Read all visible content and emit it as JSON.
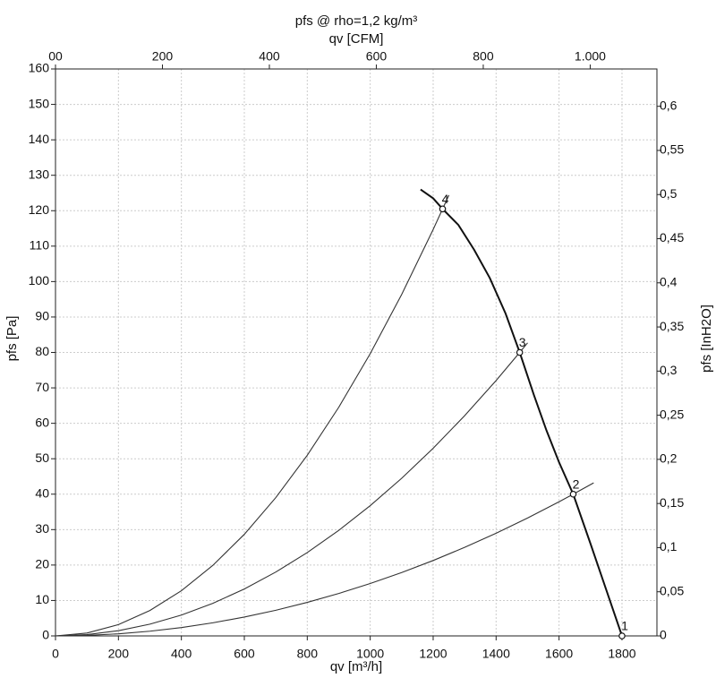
{
  "chart_data": {
    "type": "line",
    "title": "pfs @ rho=1,2 kg/m³",
    "x2_label": "qv [CFM]",
    "x_label": "qv [m³/h]",
    "y_label": "pfs [Pa]",
    "y2_label": "pfs [InH2O]",
    "xlim": [
      0,
      1911
    ],
    "xticks": [
      0,
      200,
      400,
      600,
      800,
      1000,
      1200,
      1400,
      1600,
      1800
    ],
    "x2lim": [
      0,
      1124.8
    ],
    "x2ticks": [
      {
        "value": 0,
        "label": "00"
      },
      200,
      400,
      600,
      800,
      {
        "value": 1000,
        "label": "1.000"
      }
    ],
    "ylim": [
      0,
      160
    ],
    "yticks": [
      0,
      10,
      20,
      30,
      40,
      50,
      60,
      70,
      80,
      90,
      100,
      110,
      120,
      130,
      140,
      150,
      160
    ],
    "y2lim": [
      0,
      0.6423
    ],
    "y2ticks": [
      0,
      {
        "value": 0.05,
        "label": "0,05"
      },
      {
        "value": 0.1,
        "label": "0,1"
      },
      {
        "value": 0.15,
        "label": "0,15"
      },
      {
        "value": 0.2,
        "label": "0,2"
      },
      {
        "value": 0.25,
        "label": "0,25"
      },
      {
        "value": 0.3,
        "label": "0,3"
      },
      {
        "value": 0.35,
        "label": "0,35"
      },
      {
        "value": 0.4,
        "label": "0,4"
      },
      {
        "value": 0.45,
        "label": "0,45"
      },
      {
        "value": 0.5,
        "label": "0,5"
      },
      {
        "value": 0.55,
        "label": "0,55"
      },
      {
        "value": 0.6,
        "label": "0,6"
      }
    ],
    "grid": true,
    "series": [
      {
        "color": "#111111",
        "x": [
          1160,
          1200,
          1230,
          1280,
          1330,
          1380,
          1430,
          1475,
          1520,
          1560,
          1600,
          1645,
          1700,
          1750,
          1800
        ],
        "values": [
          126,
          123.5,
          120.5,
          116,
          109,
          101,
          91,
          80,
          68,
          58,
          49,
          40,
          26,
          13,
          0
        ]
      },
      {
        "color": "#333333",
        "x": [
          0,
          100,
          200,
          300,
          400,
          500,
          600,
          700,
          800,
          900,
          1000,
          1100,
          1200,
          1230,
          1250
        ],
        "values": [
          0,
          0.8,
          3.19,
          7.17,
          12.74,
          19.91,
          28.67,
          39.03,
          50.98,
          64.52,
          79.65,
          96.38,
          114.7,
          120.5,
          124.4
        ]
      },
      {
        "color": "#333333",
        "x": [
          0,
          100,
          200,
          300,
          400,
          500,
          600,
          700,
          800,
          900,
          1000,
          1100,
          1200,
          1300,
          1400,
          1475,
          1500
        ],
        "values": [
          0,
          0.37,
          1.47,
          3.31,
          5.88,
          9.19,
          13.24,
          18.02,
          23.53,
          29.78,
          36.77,
          44.49,
          52.95,
          62.14,
          72.07,
          80,
          82.7
        ]
      },
      {
        "color": "#333333",
        "x": [
          0,
          100,
          200,
          300,
          400,
          500,
          600,
          700,
          800,
          900,
          1000,
          1100,
          1200,
          1300,
          1400,
          1500,
          1600,
          1645,
          1710
        ],
        "values": [
          0,
          0.15,
          0.59,
          1.33,
          2.36,
          3.7,
          5.32,
          7.24,
          9.46,
          11.97,
          14.78,
          17.88,
          21.28,
          24.98,
          28.97,
          33.26,
          37.84,
          40,
          43.2
        ]
      }
    ],
    "points": {
      "x": [
        1800,
        1645,
        1475,
        1230
      ],
      "values": [
        0,
        40,
        80,
        120.5
      ],
      "labels": [
        "1",
        "2",
        "3",
        "4"
      ]
    }
  }
}
